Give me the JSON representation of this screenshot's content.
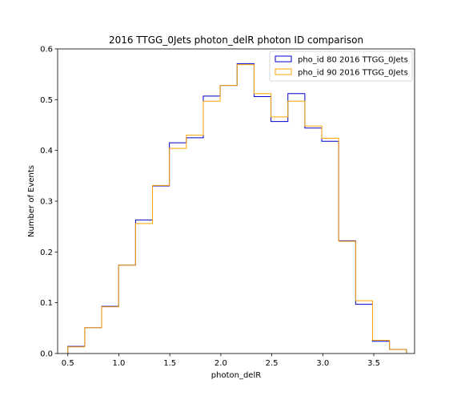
{
  "chart_data": {
    "type": "histogram-step",
    "title": "2016 TTGG_0Jets photon_delR photon ID comparison",
    "xlabel": "photon_delR",
    "ylabel": "Number of Events",
    "xlim": [
      0.4,
      3.9
    ],
    "ylim": [
      0.0,
      0.6
    ],
    "xticks": [
      0.5,
      1.0,
      1.5,
      2.0,
      2.5,
      3.0,
      3.5
    ],
    "xtick_labels": [
      "0.5",
      "1.0",
      "1.5",
      "2.0",
      "2.5",
      "3.0",
      "3.5"
    ],
    "yticks": [
      0.0,
      0.1,
      0.2,
      0.3,
      0.4,
      0.5,
      0.6
    ],
    "ytick_labels": [
      "0.0",
      "0.1",
      "0.2",
      "0.3",
      "0.4",
      "0.5",
      "0.6"
    ],
    "bin_edges": [
      0.5,
      0.666,
      0.832,
      0.998,
      1.164,
      1.33,
      1.496,
      1.662,
      1.828,
      1.994,
      2.16,
      2.326,
      2.492,
      2.658,
      2.824,
      2.99,
      3.156,
      3.322,
      3.488,
      3.654,
      3.82
    ],
    "legend_position": "upper right",
    "grid": false,
    "series": [
      {
        "name": "pho_id 80 2016 TTGG_0Jets",
        "color": "#0000cc",
        "values": [
          0.014,
          0.051,
          0.093,
          0.174,
          0.263,
          0.33,
          0.415,
          0.425,
          0.507,
          0.528,
          0.571,
          0.506,
          0.457,
          0.512,
          0.444,
          0.418,
          0.222,
          0.097,
          0.024,
          0.008
        ]
      },
      {
        "name": "pho_id 90 2016 TTGG_0Jets",
        "color": "#ffa500",
        "values": [
          0.013,
          0.051,
          0.092,
          0.174,
          0.256,
          0.331,
          0.404,
          0.43,
          0.497,
          0.528,
          0.569,
          0.512,
          0.466,
          0.497,
          0.448,
          0.424,
          0.221,
          0.104,
          0.026,
          0.008
        ]
      }
    ]
  }
}
